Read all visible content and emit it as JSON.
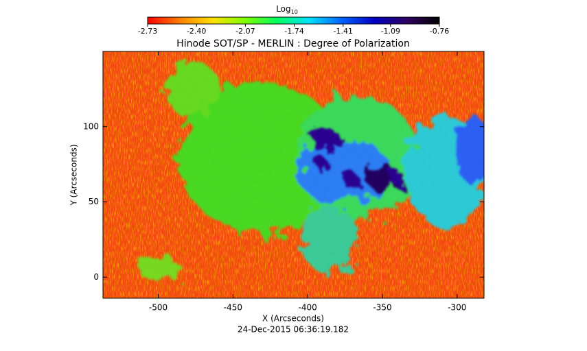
{
  "chart_data": {
    "type": "image",
    "title": "Hinode SOT/SP - MERLIN : Degree of Polarization",
    "x_label": "X (Arcseconds)",
    "y_label": "Y (Arcseconds)",
    "footer": "24-Dec-2015 06:36:19.182",
    "xlim": [
      -537,
      -282
    ],
    "ylim": [
      -14,
      150
    ],
    "xticks": [
      -500,
      -450,
      -400,
      -350,
      -300
    ],
    "yticks": [
      0,
      50,
      100
    ],
    "colorbar": {
      "label": "Log",
      "label_sub": "10",
      "lim": [
        -2.73,
        -0.76
      ],
      "ticks": [
        -2.73,
        {
          "value": -2.4,
          "label": "-2.40"
        },
        -2.07,
        -1.74,
        -1.41,
        -1.09,
        -0.76
      ],
      "colormap": [
        "#ff0000",
        "#ff8000",
        "#ffe000",
        "#80ff00",
        "#00ff60",
        "#00e0ff",
        "#0060ff",
        "#0000c0",
        "#300060",
        "#000000"
      ]
    }
  }
}
